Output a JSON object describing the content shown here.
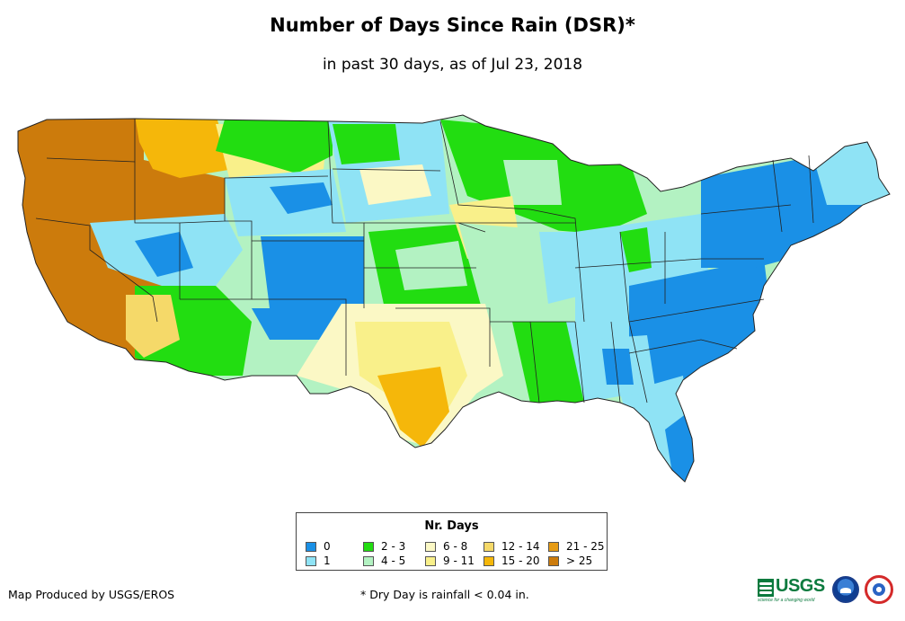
{
  "title": "Number of Days Since Rain (DSR)*",
  "subtitle": "in past 30 days, as of Jul 23, 2018",
  "legend": {
    "title": "Nr. Days",
    "items": [
      {
        "label": "0",
        "color": "#1a90e6"
      },
      {
        "label": "1",
        "color": "#8fe3f5"
      },
      {
        "label": "2 - 3",
        "color": "#22dd11"
      },
      {
        "label": "4 - 5",
        "color": "#b3f2c2"
      },
      {
        "label": "6 - 8",
        "color": "#fbf8c5"
      },
      {
        "label": "9 - 11",
        "color": "#f9f08a"
      },
      {
        "label": "12 - 14",
        "color": "#f5d969"
      },
      {
        "label": "15 - 20",
        "color": "#f5b70a"
      },
      {
        "label": "21 - 25",
        "color": "#e69b14"
      },
      {
        "label": "> 25",
        "color": "#cc7b0c"
      }
    ]
  },
  "footer": {
    "produced_by": "Map Produced by USGS/EROS",
    "note": "* Dry Day is rainfall < 0.04 in."
  },
  "logos": {
    "usgs": "USGS",
    "usgs_tagline": "science for a changing world",
    "noaa": "noaa-logo",
    "nws": "nws-logo"
  }
}
